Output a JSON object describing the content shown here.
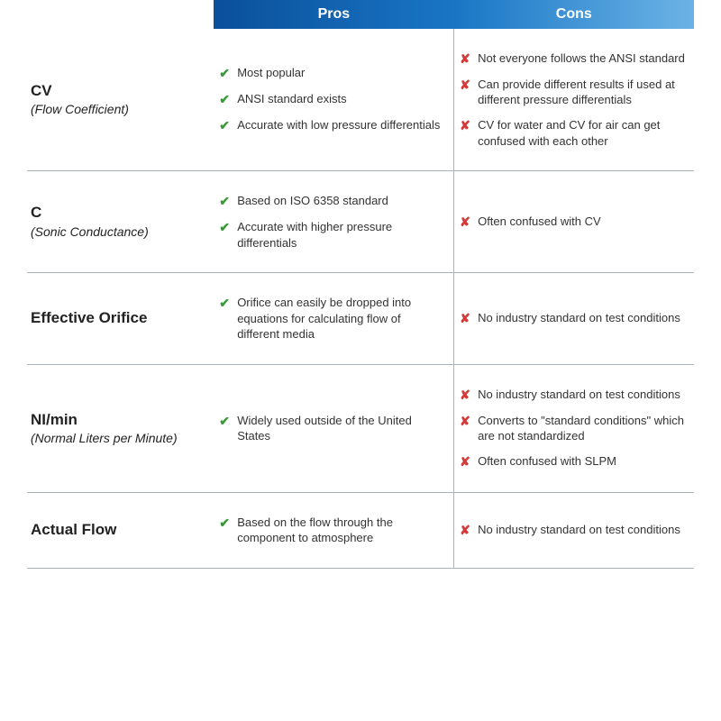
{
  "header": {
    "pros": "Pros",
    "cons": "Cons"
  },
  "colors": {
    "header_gradient_start": "#0a4f9a",
    "header_gradient_mid": "#1976c5",
    "header_gradient_end": "#6bb3e6",
    "check_color": "#3a9a3a",
    "cross_color": "#d43a3a",
    "rule_color": "#aab2bb",
    "text_color": "#333333",
    "bg_color": "#ffffff"
  },
  "rows": [
    {
      "title": "CV",
      "subtitle": "(Flow Coefficient)",
      "pros": [
        "Most popular",
        "ANSI standard exists",
        "Accurate with low pressure differentials"
      ],
      "cons": [
        "Not everyone follows the ANSI standard",
        "Can provide different results if used at different pressure differentials",
        "CV for water and CV for air can get confused with each other"
      ]
    },
    {
      "title": "C",
      "subtitle": "(Sonic Conductance)",
      "pros": [
        "Based on ISO 6358 standard",
        "Accurate with higher pressure differentials"
      ],
      "cons": [
        "Often confused with CV"
      ]
    },
    {
      "title": "Effective Orifice",
      "subtitle": "",
      "pros": [
        "Orifice can easily be dropped into equations for calculating flow of different media"
      ],
      "cons": [
        "No industry standard on test conditions"
      ]
    },
    {
      "title": "NI/min",
      "subtitle": "(Normal Liters per Minute)",
      "pros": [
        "Widely used outside of the United States"
      ],
      "cons": [
        "No industry standard on test conditions",
        "Converts to \"standard conditions\" which are not standardized",
        "Often confused with SLPM"
      ]
    },
    {
      "title": "Actual Flow",
      "subtitle": "",
      "pros": [
        "Based on the flow through the component to atmosphere"
      ],
      "cons": [
        "No industry standard on test conditions"
      ]
    }
  ]
}
